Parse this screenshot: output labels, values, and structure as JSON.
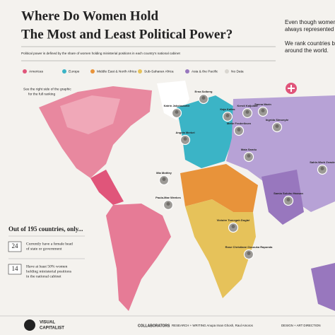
{
  "header": {
    "title": [
      "Where Do Women Hold",
      "The Most and Least Political Power?"
    ],
    "subtitle": "Political power is defined by the share of women holding ministerial positions in each country's national cabinet"
  },
  "intro": [
    "Even though women m",
    "always represented",
    "We rank countries b",
    "around the world."
  ],
  "legend": {
    "items": [
      {
        "label": "Americas",
        "color": "#e0557a"
      },
      {
        "label": "Europe",
        "color": "#3bb4c6"
      },
      {
        "label": "Middle East & North Africa",
        "color": "#e8933a"
      },
      {
        "label": "Sub-Saharan Africa",
        "color": "#e6c25a"
      },
      {
        "label": "Asia & the Pacific",
        "color": "#9877be"
      },
      {
        "label": "No Data",
        "color": "#d9d6d0"
      }
    ]
  },
  "note": [
    "See the right side of the graphic",
    "for the full ranking"
  ],
  "stats": {
    "heading": "Out of 195 countries, only...",
    "items": [
      {
        "number": 24,
        "text": [
          "Currently have a female head",
          "of state or government"
        ]
      },
      {
        "number": 14,
        "text": [
          "Have at least 50% women",
          "holding ministerial positions",
          "in the national cabinet"
        ]
      }
    ]
  },
  "leaders": [
    "Erna Solberg",
    "Sanna Marin",
    "Katrin Jakobsdottir",
    "Kaja Kallas",
    "Kersti Kaljulaid",
    "Ingrida Simonyte",
    "Mette Frederiksen",
    "Angela Merkel",
    "Maia Sandu",
    "Mia Mottley",
    "Paula-Mae Weekes",
    "Sahle-Work Zewde",
    "Samia Suluhu Hassan",
    "Victoire Tomegah Dogbé",
    "Rose Christiane Ossouka Raponda"
  ],
  "footer": {
    "brand": [
      "VISUAL",
      "CAPITALIST"
    ],
    "collaborators": "COLLABORATORS",
    "research": "RESEARCH + WRITING Anupa Iman Ghosh, Raul Amoros",
    "design": "DESIGN + ART DIRECTION"
  }
}
